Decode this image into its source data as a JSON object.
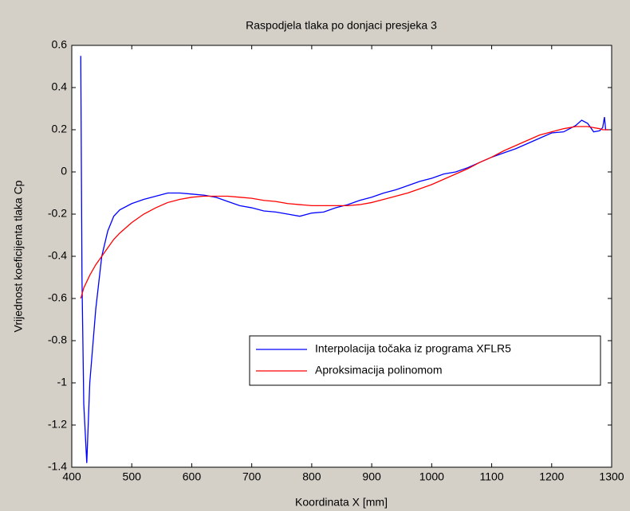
{
  "chart_data": {
    "type": "line",
    "title": "Raspodjela tlaka po donjaci presjeka 3",
    "x_label": "Koordinata X [mm]",
    "y_label": "Vrijednost koeficijenta tlaka Cp",
    "x": [
      415,
      417,
      420,
      425,
      430,
      440,
      450,
      460,
      470,
      480,
      500,
      520,
      540,
      560,
      580,
      600,
      620,
      640,
      660,
      680,
      700,
      720,
      740,
      760,
      780,
      800,
      820,
      840,
      860,
      880,
      900,
      920,
      940,
      960,
      980,
      1000,
      1020,
      1040,
      1060,
      1080,
      1100,
      1120,
      1140,
      1160,
      1180,
      1200,
      1220,
      1240,
      1250,
      1260,
      1270,
      1280,
      1285,
      1288,
      1290,
      1295
    ],
    "series": [
      {
        "name": "Interpolacija točaka iz programa XFLR5",
        "color": "#0000ff",
        "values": [
          0.55,
          -0.5,
          -1.1,
          -1.38,
          -1.0,
          -0.65,
          -0.4,
          -0.28,
          -0.21,
          -0.18,
          -0.15,
          -0.13,
          -0.115,
          -0.1,
          -0.1,
          -0.105,
          -0.11,
          -0.12,
          -0.14,
          -0.16,
          -0.17,
          -0.185,
          -0.19,
          -0.2,
          -0.21,
          -0.195,
          -0.19,
          -0.17,
          -0.155,
          -0.135,
          -0.12,
          -0.1,
          -0.085,
          -0.065,
          -0.045,
          -0.03,
          -0.01,
          0,
          0.02,
          0.045,
          0.07,
          0.09,
          0.11,
          0.135,
          0.16,
          0.185,
          0.19,
          0.22,
          0.245,
          0.23,
          0.19,
          0.195,
          0.21,
          0.26,
          0.2,
          0.2
        ]
      },
      {
        "name": "Aproksimacija polinomom",
        "color": "#ff0000",
        "values": [
          -0.6,
          -0.58,
          -0.55,
          -0.52,
          -0.49,
          -0.44,
          -0.4,
          -0.36,
          -0.32,
          -0.29,
          -0.24,
          -0.2,
          -0.17,
          -0.145,
          -0.13,
          -0.12,
          -0.115,
          -0.115,
          -0.115,
          -0.12,
          -0.125,
          -0.135,
          -0.14,
          -0.15,
          -0.155,
          -0.16,
          -0.16,
          -0.16,
          -0.16,
          -0.155,
          -0.145,
          -0.13,
          -0.115,
          -0.1,
          -0.08,
          -0.06,
          -0.035,
          -0.01,
          0.015,
          0.045,
          0.07,
          0.1,
          0.125,
          0.15,
          0.175,
          0.19,
          0.205,
          0.215,
          0.215,
          0.215,
          0.21,
          0.205,
          0.2,
          0.2,
          0.2,
          0.2
        ]
      }
    ],
    "xlim": [
      400,
      1300
    ],
    "xticks": [
      400,
      500,
      600,
      700,
      800,
      900,
      1000,
      1100,
      1200,
      1300
    ],
    "ylim": [
      -1.4,
      0.6
    ],
    "yticks": [
      -1.4,
      -1.2,
      -1,
      -0.8,
      -0.6,
      -0.4,
      -0.2,
      0,
      0.2,
      0.4,
      0.6
    ],
    "grid": false,
    "legend": "lower right"
  }
}
